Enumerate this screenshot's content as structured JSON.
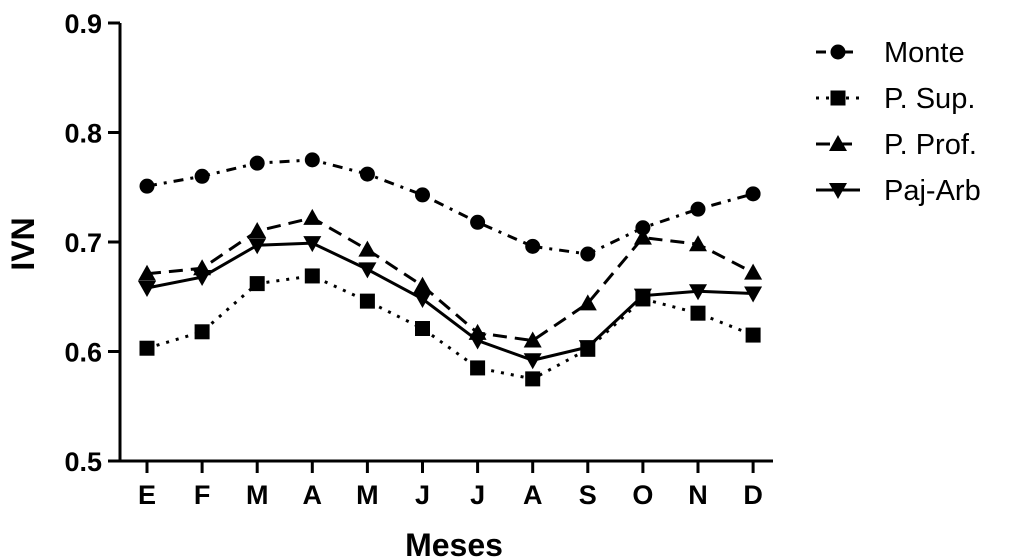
{
  "chart_data": {
    "type": "line",
    "title": "",
    "xlabel": "Meses",
    "ylabel": "IVN",
    "ylim": [
      0.5,
      0.9
    ],
    "yticks": [
      "0.5",
      "0.6",
      "0.7",
      "0.8",
      "0.9"
    ],
    "categories": [
      "E",
      "F",
      "M",
      "A",
      "M",
      "J",
      "J",
      "A",
      "S",
      "O",
      "N",
      "D"
    ],
    "grid": false,
    "legend_position": "top-right",
    "series": [
      {
        "name": "Monte",
        "marker": "circle",
        "dash": "dash-dot",
        "values": [
          0.751,
          0.76,
          0.772,
          0.775,
          0.762,
          0.743,
          0.718,
          0.696,
          0.689,
          0.713,
          0.73,
          0.744
        ]
      },
      {
        "name": "P. Sup.",
        "marker": "square",
        "dash": "dotted",
        "values": [
          0.603,
          0.618,
          0.662,
          0.669,
          0.646,
          0.621,
          0.585,
          0.575,
          0.602,
          0.648,
          0.635,
          0.615
        ]
      },
      {
        "name": "P. Prof.",
        "marker": "triangle-up",
        "dash": "dashed",
        "values": [
          0.671,
          0.676,
          0.71,
          0.722,
          0.693,
          0.66,
          0.617,
          0.61,
          0.644,
          0.704,
          0.698,
          0.672
        ]
      },
      {
        "name": "Paj-Arb",
        "marker": "triangle-down",
        "dash": "solid",
        "values": [
          0.658,
          0.668,
          0.697,
          0.699,
          0.675,
          0.648,
          0.61,
          0.592,
          0.604,
          0.651,
          0.655,
          0.653
        ]
      }
    ]
  }
}
